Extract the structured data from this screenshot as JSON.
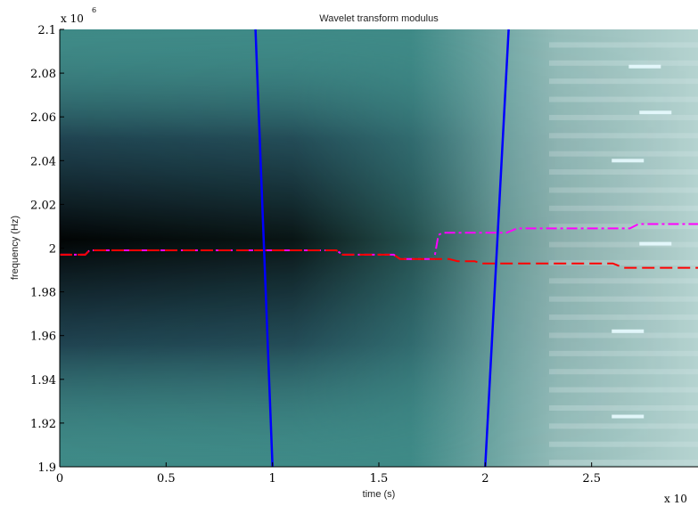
{
  "chart_data": {
    "type": "heatmap",
    "title": "Wavelet transform modulus",
    "xlabel": "time (s)",
    "ylabel": "frequency (Hz)",
    "xlim": [
      0,
      3
    ],
    "ylim": [
      1.9,
      2.1
    ],
    "x_multiplier_label": "x 10",
    "y_multiplier_label": "x 10",
    "y_multiplier_exp": "6",
    "x_ticks": [
      {
        "value": 0,
        "label": "0"
      },
      {
        "value": 0.5,
        "label": "0.5"
      },
      {
        "value": 1,
        "label": "1"
      },
      {
        "value": 1.5,
        "label": "1.5"
      },
      {
        "value": 2,
        "label": "2"
      },
      {
        "value": 2.5,
        "label": "2.5"
      }
    ],
    "y_ticks": [
      {
        "value": 1.9,
        "label": "1.9"
      },
      {
        "value": 1.92,
        "label": "1.92"
      },
      {
        "value": 1.94,
        "label": "1.94"
      },
      {
        "value": 1.96,
        "label": "1.96"
      },
      {
        "value": 1.98,
        "label": "1.98"
      },
      {
        "value": 2.0,
        "label": "2"
      },
      {
        "value": 2.02,
        "label": "2.02"
      },
      {
        "value": 2.04,
        "label": "2.04"
      },
      {
        "value": 2.06,
        "label": "2.06"
      },
      {
        "value": 2.08,
        "label": "2.08"
      },
      {
        "value": 2.1,
        "label": "2.1"
      }
    ],
    "colormap": {
      "low": "#000000",
      "mid_low": "#1c1e46",
      "mid": "#3a8684",
      "high": "#a9c8c5",
      "peak": "#e8fbff"
    },
    "series": [
      {
        "style": "dash-dot",
        "color": "#ff00ff",
        "points": [
          [
            0,
            1.997
          ],
          [
            0.12,
            1.997
          ],
          [
            0.14,
            1.999
          ],
          [
            1.3,
            1.999
          ],
          [
            1.33,
            1.997
          ],
          [
            1.57,
            1.997
          ],
          [
            1.6,
            1.995
          ],
          [
            1.76,
            1.995
          ],
          [
            1.78,
            2.006
          ],
          [
            1.8,
            2.007
          ],
          [
            2.1,
            2.007
          ],
          [
            2.15,
            2.009
          ],
          [
            2.68,
            2.009
          ],
          [
            2.72,
            2.011
          ],
          [
            3,
            2.011
          ]
        ]
      },
      {
        "style": "dashed",
        "color": "#ff0000",
        "points": [
          [
            0,
            1.997
          ],
          [
            0.12,
            1.997
          ],
          [
            0.14,
            1.999
          ],
          [
            1.3,
            1.999
          ],
          [
            1.33,
            1.997
          ],
          [
            1.57,
            1.997
          ],
          [
            1.6,
            1.995
          ],
          [
            1.83,
            1.995
          ],
          [
            1.87,
            1.994
          ],
          [
            1.95,
            1.994
          ],
          [
            1.98,
            1.993
          ],
          [
            2.6,
            1.993
          ],
          [
            2.65,
            1.991
          ],
          [
            3,
            1.991
          ]
        ]
      },
      {
        "style": "solid",
        "color": "#0000ff",
        "points": [
          [
            0.92,
            2.1
          ],
          [
            1.0,
            1.9
          ]
        ]
      },
      {
        "style": "solid",
        "color": "#0000ff",
        "points": [
          [
            2.11,
            2.1
          ],
          [
            2.0,
            1.9
          ]
        ]
      }
    ]
  }
}
